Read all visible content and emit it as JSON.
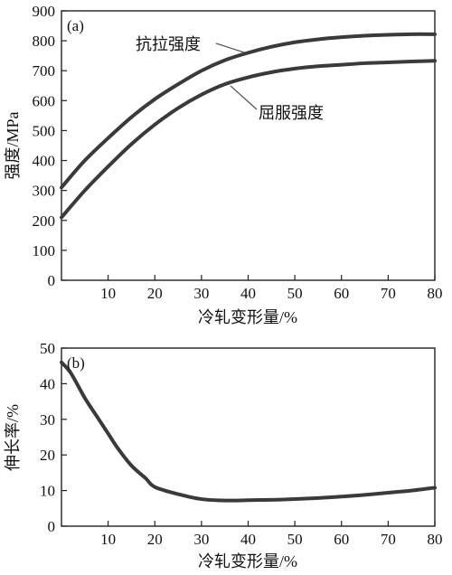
{
  "chart_data": [
    {
      "type": "line",
      "panel_label": "(a)",
      "xlabel": "冷轧变形量/%",
      "ylabel": "强度/MPa",
      "xlim": [
        0,
        80
      ],
      "ylim": [
        0,
        900
      ],
      "x_ticks": [
        10,
        20,
        30,
        40,
        50,
        60,
        70,
        80
      ],
      "y_ticks": [
        0,
        100,
        200,
        300,
        400,
        500,
        600,
        700,
        800,
        900
      ],
      "grid": false,
      "series": [
        {
          "name": "抗拉强度",
          "x": [
            0,
            5,
            10,
            15,
            20,
            25,
            30,
            35,
            40,
            45,
            50,
            55,
            60,
            65,
            70,
            75,
            80
          ],
          "y": [
            310,
            400,
            475,
            545,
            605,
            655,
            700,
            735,
            760,
            780,
            795,
            805,
            812,
            817,
            820,
            822,
            822
          ]
        },
        {
          "name": "屈服强度",
          "x": [
            0,
            5,
            10,
            15,
            20,
            25,
            30,
            35,
            40,
            45,
            50,
            55,
            60,
            65,
            70,
            75,
            80
          ],
          "y": [
            210,
            300,
            380,
            455,
            520,
            575,
            620,
            655,
            678,
            695,
            707,
            715,
            720,
            725,
            728,
            731,
            733
          ]
        }
      ]
    },
    {
      "type": "line",
      "panel_label": "(b)",
      "xlabel": "冷轧变形量/%",
      "ylabel": "伸长率/%",
      "xlim": [
        0,
        80
      ],
      "ylim": [
        0,
        50
      ],
      "x_ticks": [
        10,
        20,
        30,
        40,
        50,
        60,
        70,
        80
      ],
      "y_ticks": [
        0,
        10,
        20,
        30,
        40,
        50
      ],
      "grid": false,
      "series": [
        {
          "x": [
            0,
            2,
            5,
            8,
            10,
            12,
            15,
            18,
            20,
            25,
            30,
            35,
            40,
            45,
            50,
            55,
            60,
            65,
            70,
            75,
            80
          ],
          "y": [
            46,
            43,
            36,
            30,
            26,
            22,
            17,
            13.5,
            11,
            9,
            7.6,
            7.2,
            7.3,
            7.4,
            7.6,
            7.9,
            8.3,
            8.8,
            9.4,
            10,
            10.8
          ]
        }
      ]
    }
  ]
}
